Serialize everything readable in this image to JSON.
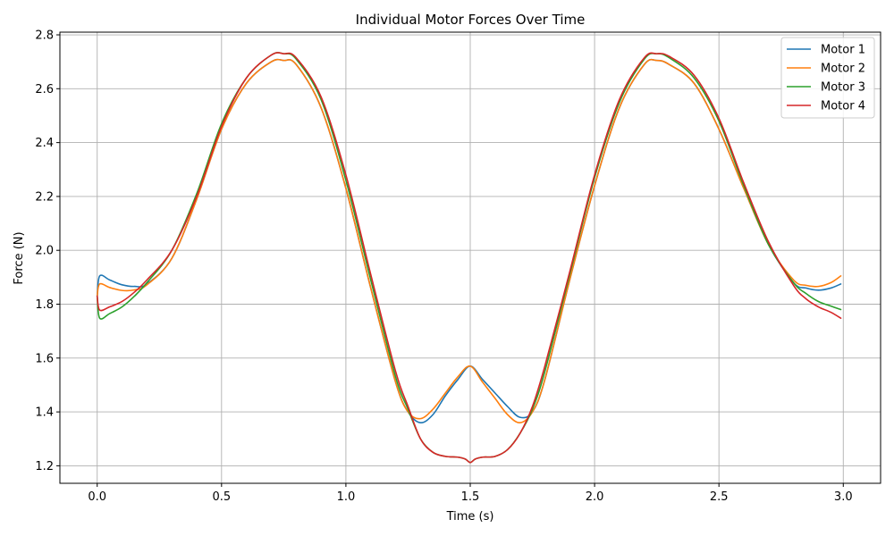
{
  "chart_data": {
    "type": "line",
    "title": "Individual Motor Forces Over Time",
    "xlabel": "Time (s)",
    "ylabel": "Force (N)",
    "xlim": [
      -0.15,
      3.15
    ],
    "ylim": [
      1.135,
      2.81
    ],
    "xticks": [
      0.0,
      0.5,
      1.0,
      1.5,
      2.0,
      2.5,
      3.0
    ],
    "xtick_labels": [
      "0.0",
      "0.5",
      "1.0",
      "1.5",
      "2.0",
      "2.5",
      "3.0"
    ],
    "yticks": [
      1.2,
      1.4,
      1.6,
      1.8,
      2.0,
      2.2,
      2.4,
      2.6,
      2.8
    ],
    "ytick_labels": [
      "1.2",
      "1.4",
      "1.6",
      "1.8",
      "2.0",
      "2.2",
      "2.4",
      "2.6",
      "2.8"
    ],
    "grid": true,
    "legend_position": "top-right",
    "series": [
      {
        "name": "Motor 1",
        "color": "#1f77b4",
        "x": [
          0.0,
          0.01,
          0.05,
          0.1,
          0.15,
          0.2,
          0.3,
          0.4,
          0.5,
          0.6,
          0.7,
          0.75,
          0.8,
          0.9,
          1.0,
          1.1,
          1.2,
          1.25,
          1.3,
          1.35,
          1.4,
          1.45,
          1.5,
          1.55,
          1.6,
          1.65,
          1.7,
          1.75,
          1.8,
          1.9,
          2.0,
          2.1,
          2.2,
          2.25,
          2.3,
          2.4,
          2.5,
          2.6,
          2.7,
          2.8,
          2.85,
          2.9,
          2.95,
          2.99
        ],
        "y": [
          1.83,
          1.905,
          1.89,
          1.872,
          1.866,
          1.875,
          1.97,
          2.19,
          2.45,
          2.62,
          2.7,
          2.705,
          2.69,
          2.53,
          2.23,
          1.86,
          1.51,
          1.4,
          1.36,
          1.39,
          1.46,
          1.52,
          1.57,
          1.52,
          1.47,
          1.42,
          1.38,
          1.4,
          1.52,
          1.89,
          2.24,
          2.53,
          2.69,
          2.705,
          2.69,
          2.62,
          2.45,
          2.23,
          2.02,
          1.88,
          1.86,
          1.852,
          1.86,
          1.875
        ]
      },
      {
        "name": "Motor 2",
        "color": "#ff7f0e",
        "x": [
          0.0,
          0.01,
          0.05,
          0.1,
          0.15,
          0.2,
          0.3,
          0.4,
          0.5,
          0.6,
          0.7,
          0.75,
          0.8,
          0.9,
          1.0,
          1.1,
          1.2,
          1.25,
          1.3,
          1.35,
          1.4,
          1.45,
          1.5,
          1.55,
          1.6,
          1.65,
          1.7,
          1.75,
          1.8,
          1.9,
          2.0,
          2.1,
          2.2,
          2.25,
          2.3,
          2.4,
          2.5,
          2.6,
          2.7,
          2.8,
          2.85,
          2.9,
          2.95,
          2.99
        ],
        "y": [
          1.83,
          1.875,
          1.862,
          1.851,
          1.853,
          1.872,
          1.97,
          2.19,
          2.45,
          2.62,
          2.7,
          2.705,
          2.69,
          2.53,
          2.23,
          1.86,
          1.51,
          1.4,
          1.375,
          1.41,
          1.47,
          1.53,
          1.57,
          1.51,
          1.45,
          1.39,
          1.36,
          1.4,
          1.52,
          1.89,
          2.24,
          2.53,
          2.69,
          2.705,
          2.69,
          2.62,
          2.45,
          2.23,
          2.02,
          1.89,
          1.87,
          1.866,
          1.88,
          1.905
        ]
      },
      {
        "name": "Motor 3",
        "color": "#2ca02c",
        "x": [
          0.0,
          0.01,
          0.05,
          0.1,
          0.15,
          0.2,
          0.3,
          0.4,
          0.5,
          0.6,
          0.7,
          0.75,
          0.8,
          0.9,
          1.0,
          1.1,
          1.2,
          1.25,
          1.3,
          1.35,
          1.4,
          1.45,
          1.48,
          1.5,
          1.52,
          1.55,
          1.6,
          1.65,
          1.7,
          1.75,
          1.8,
          1.9,
          2.0,
          2.1,
          2.2,
          2.25,
          2.3,
          2.4,
          2.5,
          2.6,
          2.7,
          2.8,
          2.85,
          2.9,
          2.95,
          2.99
        ],
        "y": [
          1.83,
          1.748,
          1.765,
          1.79,
          1.83,
          1.88,
          2.0,
          2.21,
          2.47,
          2.64,
          2.725,
          2.73,
          2.71,
          2.56,
          2.26,
          1.89,
          1.53,
          1.41,
          1.3,
          1.25,
          1.235,
          1.232,
          1.225,
          1.212,
          1.225,
          1.232,
          1.235,
          1.26,
          1.32,
          1.41,
          1.55,
          1.91,
          2.27,
          2.55,
          2.71,
          2.73,
          2.715,
          2.64,
          2.48,
          2.24,
          2.02,
          1.88,
          1.84,
          1.81,
          1.793,
          1.78
        ]
      },
      {
        "name": "Motor 4",
        "color": "#d62728",
        "x": [
          0.0,
          0.01,
          0.05,
          0.1,
          0.15,
          0.2,
          0.3,
          0.4,
          0.5,
          0.6,
          0.7,
          0.75,
          0.8,
          0.9,
          1.0,
          1.1,
          1.2,
          1.25,
          1.3,
          1.35,
          1.4,
          1.45,
          1.48,
          1.5,
          1.52,
          1.55,
          1.6,
          1.65,
          1.7,
          1.75,
          1.8,
          1.9,
          2.0,
          2.1,
          2.2,
          2.25,
          2.3,
          2.4,
          2.5,
          2.6,
          2.7,
          2.8,
          2.85,
          2.9,
          2.95,
          2.99
        ],
        "y": [
          1.83,
          1.778,
          1.79,
          1.81,
          1.845,
          1.89,
          2.0,
          2.2,
          2.46,
          2.64,
          2.725,
          2.73,
          2.715,
          2.57,
          2.28,
          1.91,
          1.55,
          1.42,
          1.3,
          1.25,
          1.235,
          1.232,
          1.225,
          1.212,
          1.225,
          1.232,
          1.235,
          1.26,
          1.32,
          1.42,
          1.57,
          1.92,
          2.28,
          2.56,
          2.715,
          2.73,
          2.72,
          2.65,
          2.49,
          2.25,
          2.03,
          1.87,
          1.82,
          1.79,
          1.77,
          1.748
        ]
      }
    ]
  }
}
